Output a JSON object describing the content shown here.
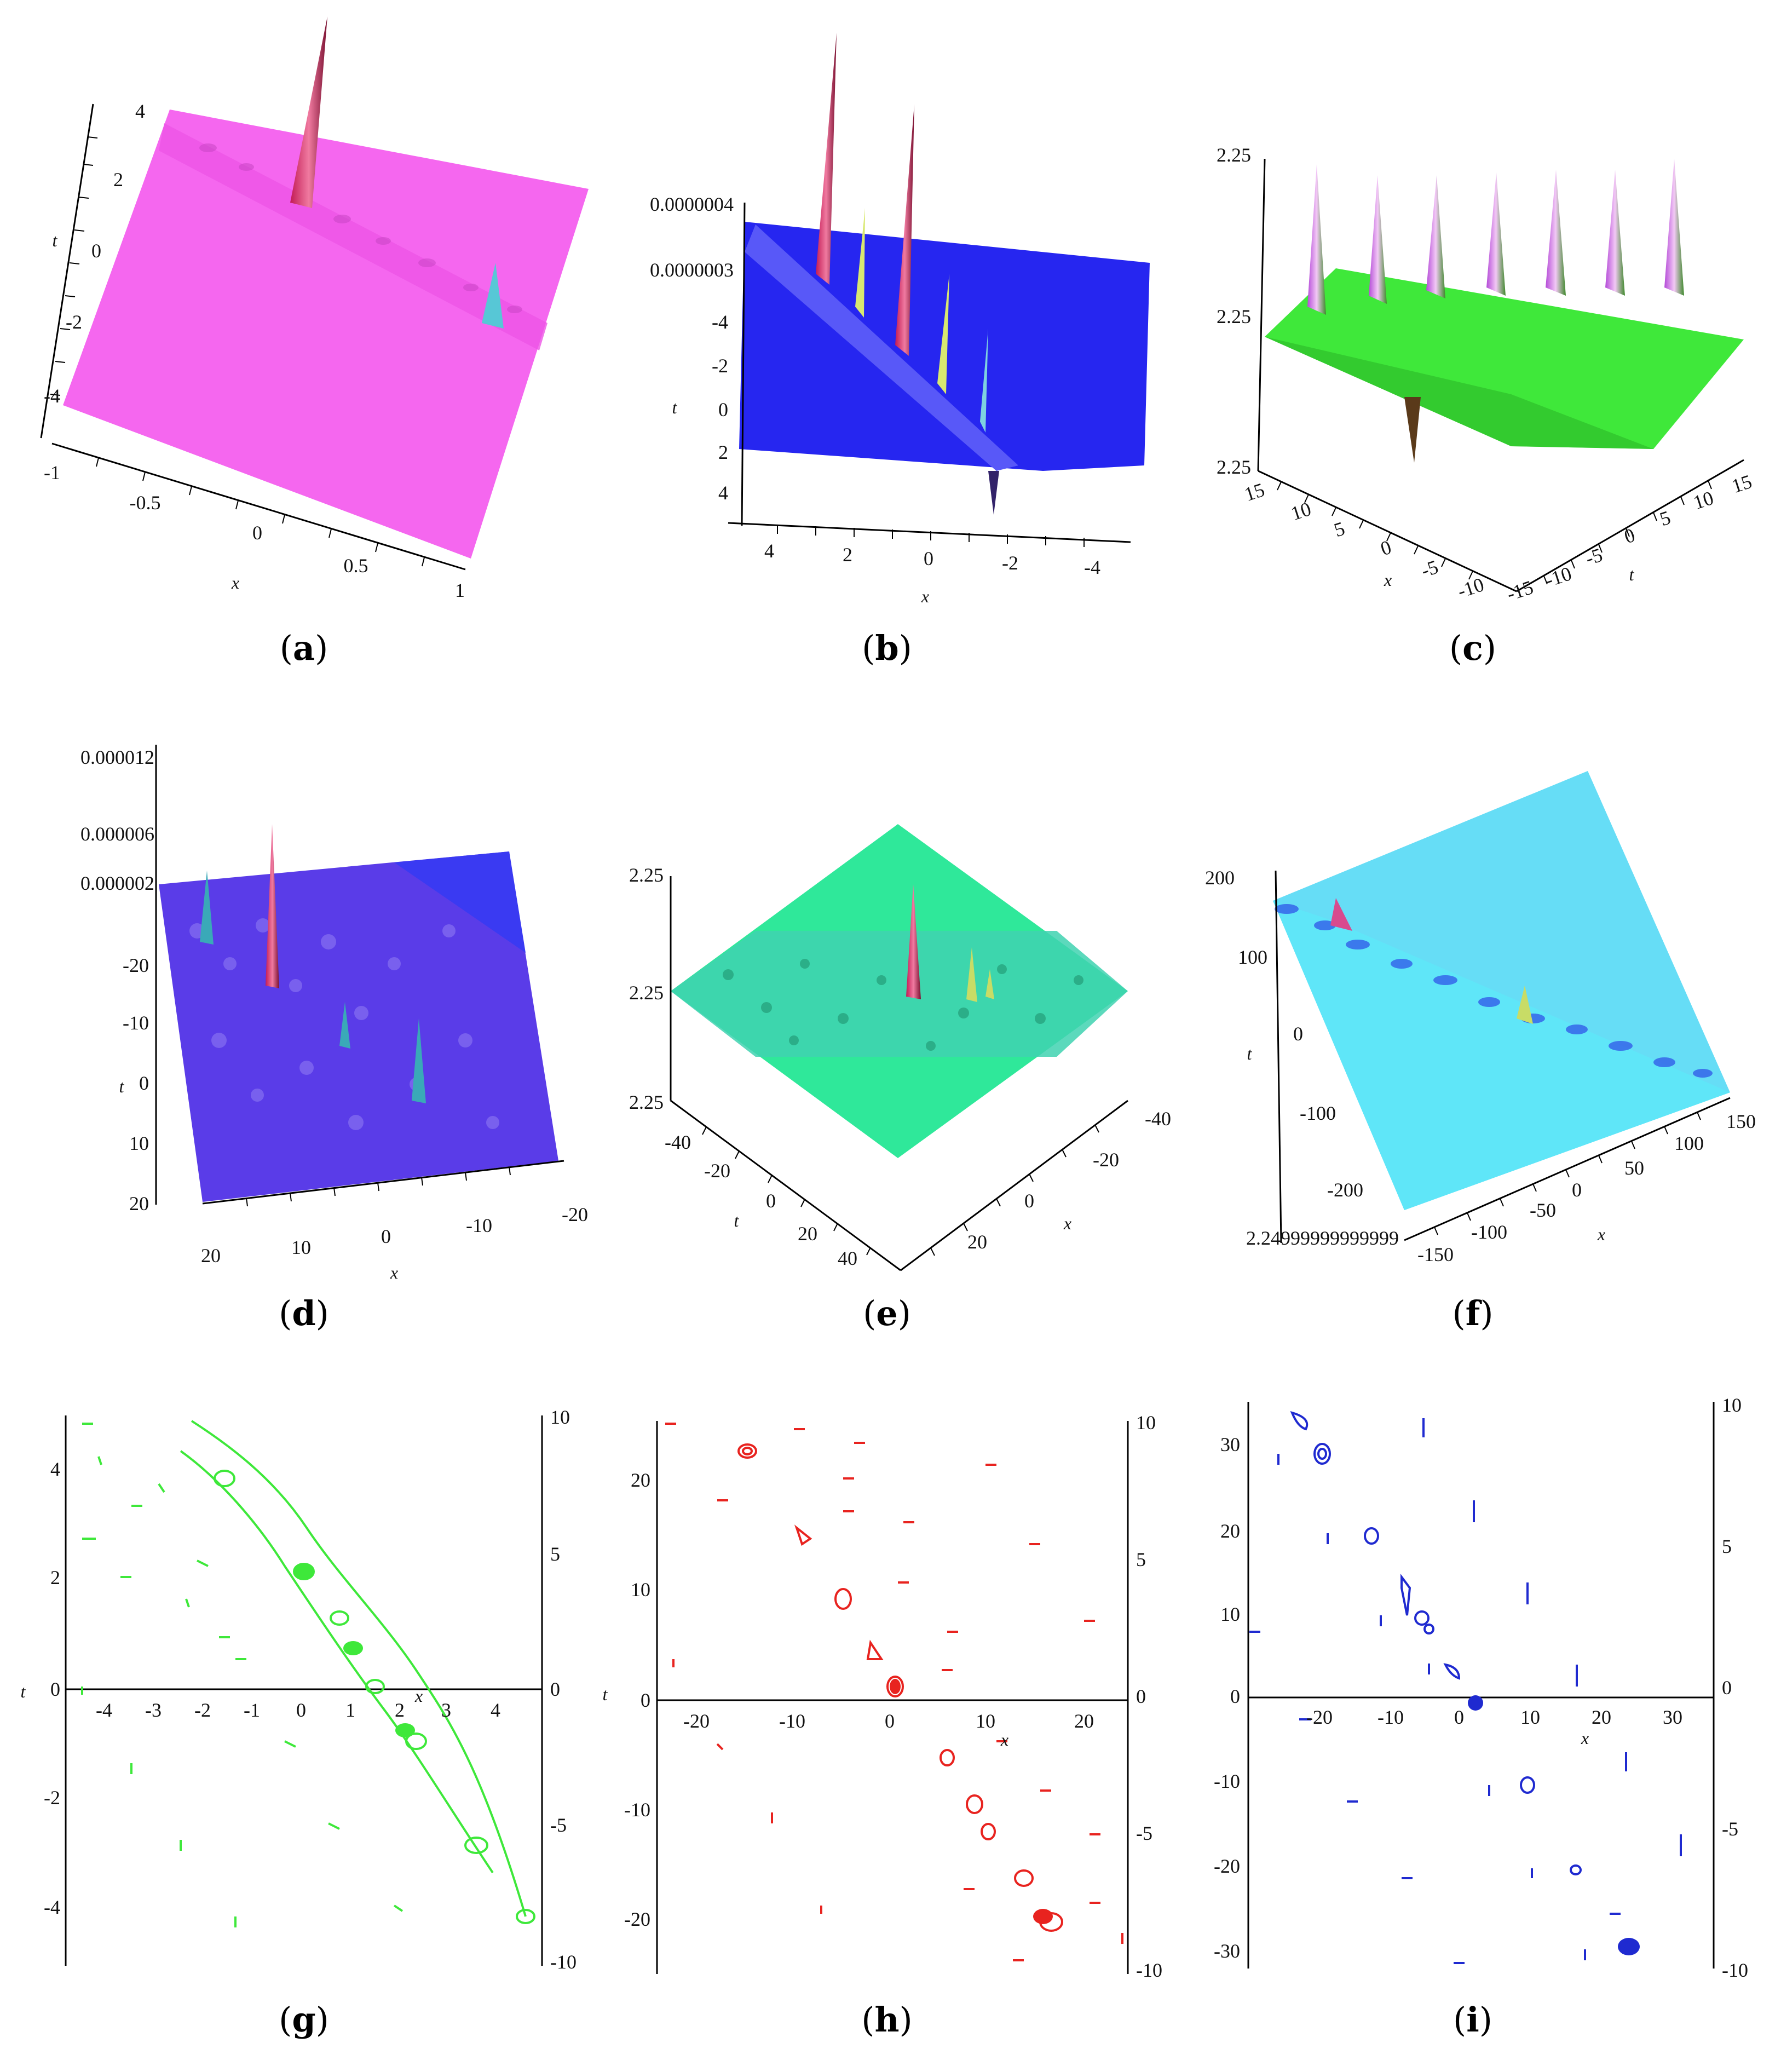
{
  "figure": {
    "panels": [
      {
        "id": "a",
        "caption": "a",
        "kind": "surface3d",
        "color": "#f567ef",
        "x_label": "x",
        "y_label": "t",
        "x_ticks": [
          "-1",
          "-0.5",
          "0",
          "0.5",
          "1"
        ],
        "y_ticks": [
          "4",
          "2",
          "0",
          "-2",
          "-4"
        ]
      },
      {
        "id": "b",
        "caption": "b",
        "kind": "surface3d",
        "color": "#2626f0",
        "x_label": "x",
        "y_label": "t",
        "x_ticks": [
          "4",
          "2",
          "0",
          "-2",
          "-4"
        ],
        "y_ticks": [
          "-4",
          "-2",
          "0",
          "2",
          "4"
        ],
        "z_ticks": [
          "0.0000004",
          "0.0000003"
        ]
      },
      {
        "id": "c",
        "caption": "c",
        "kind": "surface3d",
        "color": "#3fe83a",
        "x_label": "x",
        "y_label": "t",
        "x_ticks": [
          "15",
          "10",
          "5",
          "0",
          "-5",
          "-10",
          "-15"
        ],
        "y_ticks": [
          "-10",
          "-5",
          "0",
          "5",
          "10",
          "15"
        ],
        "z_ticks": [
          "2.25",
          "2.25",
          "2.25"
        ]
      },
      {
        "id": "d",
        "caption": "d",
        "kind": "surface3d",
        "color": "#5a3ce8",
        "x_label": "x",
        "y_label": "t",
        "x_ticks": [
          "20",
          "10",
          "0",
          "-10",
          "-20"
        ],
        "y_ticks": [
          "-20",
          "-10",
          "0",
          "10",
          "20"
        ],
        "z_ticks": [
          "0.000012",
          "0.000006",
          "0.000002"
        ]
      },
      {
        "id": "e",
        "caption": "e",
        "kind": "surface3d",
        "color": "#2fe89a",
        "x_label": "x",
        "y_label": "t",
        "x_ticks": [
          "-40",
          "-20",
          "0",
          "20"
        ],
        "y_ticks": [
          "-40",
          "-20",
          "0",
          "20",
          "40"
        ],
        "z_ticks": [
          "2.25",
          "2.25",
          "2.25"
        ]
      },
      {
        "id": "f",
        "caption": "f",
        "kind": "surface3d",
        "color": "#66ddf6",
        "x_label": "x",
        "y_label": "t",
        "x_ticks": [
          "-150",
          "-100",
          "-50",
          "0",
          "50",
          "100",
          "150"
        ],
        "y_ticks": [
          "200",
          "100",
          "0",
          "-100",
          "-200"
        ],
        "z_ticks": [
          "2.24999999999999"
        ]
      },
      {
        "id": "g",
        "caption": "g",
        "kind": "contour",
        "color": "#3ee83a",
        "x_label": "x",
        "y_label": "t",
        "x_ticks": [
          "-4",
          "-3",
          "-2",
          "-1",
          "0",
          "1",
          "2",
          "3",
          "4"
        ],
        "y_ticks": [
          "4",
          "2",
          "0",
          "-2",
          "-4"
        ],
        "r_ticks": [
          "10",
          "5",
          "0",
          "-5",
          "-10"
        ]
      },
      {
        "id": "h",
        "caption": "h",
        "kind": "contour",
        "color": "#e8231f",
        "x_label": "x",
        "y_label": "t",
        "x_ticks": [
          "-20",
          "-10",
          "0",
          "10",
          "20"
        ],
        "y_ticks": [
          "20",
          "10",
          "0",
          "-10",
          "-20"
        ],
        "r_ticks": [
          "10",
          "5",
          "0",
          "-5",
          "-10"
        ]
      },
      {
        "id": "i",
        "caption": "i",
        "kind": "contour",
        "color": "#1f2ad0",
        "x_label": "x",
        "y_label": "t",
        "x_ticks": [
          "-20",
          "-10",
          "0",
          "10",
          "20",
          "30"
        ],
        "y_ticks": [
          "30",
          "20",
          "10",
          "0",
          "-10",
          "-20",
          "-30"
        ],
        "r_ticks": [
          "10",
          "5",
          "0",
          "-5",
          "-10"
        ]
      }
    ]
  }
}
